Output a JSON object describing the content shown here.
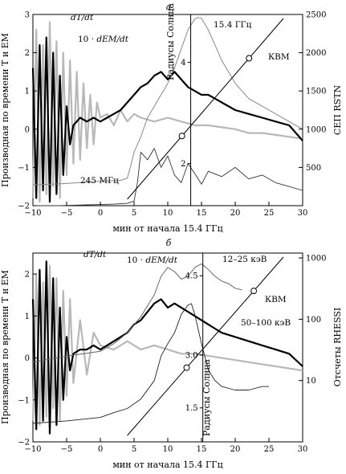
{
  "chart_data": [
    {
      "type": "line",
      "panel_label": "а",
      "xlabel": "мин от начала 15.4 ГГц",
      "ylabel": "Производная по времени T и EM",
      "y2label": "СЕП RSTN",
      "y3label": "Радиусы Солнца",
      "xlim": [
        -10,
        30
      ],
      "ylim": [
        -2,
        3
      ],
      "y2lim": [
        0,
        2500
      ],
      "x_ticks": [
        "−10",
        "−5",
        "0",
        "5",
        "10",
        "15",
        "20",
        "25",
        "30"
      ],
      "y_ticks": [
        "−2",
        "−1",
        "0",
        "1",
        "2",
        "3"
      ],
      "y2_ticks": [
        "500",
        "1000",
        "1500",
        "2000",
        "2500"
      ],
      "y3_ticks": [
        "2",
        "4"
      ],
      "marker_x": 13.4,
      "annotations": [
        "dT/dt",
        "10 · dEM/dt",
        "15.4 ГГц",
        "245 МГц",
        "КВМ"
      ],
      "series": [
        {
          "name": "dT/dt",
          "x": [
            -10,
            -9.5,
            -9,
            -8.5,
            -8,
            -7.5,
            -7,
            -6.5,
            -6,
            -5.5,
            -5,
            -4.5,
            -4,
            -3.5,
            -3,
            -2.5,
            -2,
            -1.5,
            -1,
            -0.5,
            0,
            1,
            2,
            3,
            4,
            5,
            6,
            8,
            10,
            12,
            14,
            16,
            18,
            20,
            22,
            24,
            26,
            28,
            30
          ],
          "y": [
            -1.8,
            2.6,
            -1.9,
            2.2,
            -1.7,
            2.8,
            -1.5,
            2.3,
            -1.8,
            2.0,
            -1.2,
            1.8,
            -0.9,
            1.5,
            -0.8,
            1.2,
            -0.5,
            0.9,
            -0.4,
            0.7,
            0.3,
            0.4,
            0.1,
            0.5,
            0.2,
            0.4,
            0.3,
            0.2,
            0.3,
            0.2,
            0.1,
            0.1,
            0.05,
            0.0,
            -0.1,
            -0.1,
            -0.15,
            -0.2,
            -0.25
          ]
        },
        {
          "name": "10 · dEM/dt",
          "x": [
            -10,
            -9.5,
            -9,
            -8.5,
            -8,
            -7.5,
            -7,
            -6.5,
            -6,
            -5.5,
            -5,
            -4.5,
            -4,
            -3,
            -2,
            -1,
            0,
            1,
            2,
            3,
            4,
            5,
            6,
            7,
            8,
            9,
            10,
            11,
            12,
            13,
            14,
            15,
            16,
            17,
            18,
            20,
            22,
            24,
            26,
            28,
            30
          ],
          "y": [
            1.6,
            -1.8,
            2.2,
            -1.6,
            2.4,
            -1.9,
            2.0,
            -1.7,
            1.4,
            -1.2,
            0.6,
            -0.4,
            0.1,
            0.3,
            0.2,
            0.3,
            0.2,
            0.3,
            0.4,
            0.5,
            0.7,
            0.9,
            1.1,
            1.2,
            1.4,
            1.5,
            1.3,
            1.5,
            1.3,
            1.1,
            1.0,
            0.9,
            0.9,
            0.8,
            0.7,
            0.5,
            0.4,
            0.3,
            0.2,
            0.1,
            -0.3
          ]
        },
        {
          "name": "15.4 ГГц",
          "x": [
            -10,
            -5,
            0,
            3,
            4,
            4.5,
            5,
            6,
            7,
            8,
            9,
            10,
            11,
            12,
            13,
            14,
            14.5,
            15,
            16,
            17,
            18,
            20,
            22,
            24,
            26,
            28,
            30
          ],
          "y": [
            270,
            290,
            320,
            330,
            360,
            520,
            700,
            900,
            1150,
            1300,
            1450,
            1600,
            1800,
            2050,
            2300,
            2440,
            2460,
            2450,
            2300,
            2100,
            1900,
            1600,
            1400,
            1300,
            1200,
            1100,
            1000
          ]
        },
        {
          "name": "245 МГц",
          "x": [
            -10,
            -8,
            -6,
            -4,
            -2,
            0,
            2,
            4,
            5,
            5.5,
            6,
            7,
            8,
            9,
            10,
            11,
            12,
            13,
            14,
            15,
            16,
            18,
            20,
            22,
            24,
            26,
            28,
            30
          ],
          "y": [
            0,
            0,
            0,
            5,
            10,
            15,
            20,
            30,
            60,
            300,
            700,
            600,
            750,
            500,
            650,
            400,
            300,
            550,
            420,
            280,
            450,
            380,
            500,
            350,
            400,
            300,
            250,
            200
          ]
        }
      ],
      "cme": {
        "x": [
          4,
          13.4,
          25
        ],
        "y3": [
          0.9,
          2.4,
          4.3
        ]
      }
    },
    {
      "type": "line",
      "panel_label": "б",
      "xlabel": "мин от начала 15.4 ГГц",
      "ylabel": "Производная по времени T и EM",
      "y2label": "Отсчеты RHESSI",
      "y3label": "Радиусы Солнца",
      "xlim": [
        -10,
        30
      ],
      "ylim": [
        -2,
        2.5
      ],
      "y2_scale": "log",
      "y2lim": [
        1,
        1200
      ],
      "x_ticks": [
        "−10",
        "−5",
        "0",
        "5",
        "10",
        "15",
        "20",
        "25",
        "30"
      ],
      "y_ticks": [
        "−2",
        "−1",
        "0",
        "1",
        "2"
      ],
      "y2_ticks": [
        "10",
        "100",
        "1000"
      ],
      "y3_ticks": [
        "1.5",
        "3.0",
        "4.5"
      ],
      "marker_x": 15.2,
      "annotations": [
        "dT/dt",
        "10 · dEM/dt",
        "12–25 кэВ",
        "50–100 кэВ",
        "КВМ"
      ],
      "series": [
        {
          "name": "dT/dt",
          "x": [
            -10,
            -9.5,
            -9,
            -8.5,
            -8,
            -7.5,
            -7,
            -6.5,
            -6,
            -5.5,
            -5,
            -4.5,
            -4,
            -3,
            -2,
            -1,
            0,
            2,
            4,
            6,
            8,
            10,
            12,
            14,
            16,
            18,
            20,
            22,
            24,
            26,
            28,
            30
          ],
          "y": [
            -1.5,
            2.0,
            -1.6,
            1.8,
            -1.4,
            2.2,
            -1.2,
            1.9,
            -1.5,
            1.6,
            -0.9,
            1.4,
            -0.6,
            0.9,
            -0.4,
            0.6,
            0.3,
            0.2,
            0.4,
            0.2,
            0.3,
            0.2,
            0.1,
            0.1,
            0.05,
            0.0,
            -0.05,
            -0.1,
            -0.15,
            -0.2,
            -0.25,
            -0.3
          ]
        },
        {
          "name": "10 · dEM/dt",
          "x": [
            -10,
            -9.5,
            -9,
            -8.5,
            -8,
            -7.5,
            -7,
            -6.5,
            -6,
            -5.5,
            -5,
            -4.5,
            -4,
            -3,
            -2,
            -1,
            0,
            1,
            2,
            3,
            4,
            5,
            6,
            7,
            8,
            9,
            10,
            11,
            12,
            13,
            14,
            15,
            16,
            17,
            18,
            20,
            22,
            24,
            26,
            28,
            30
          ],
          "y": [
            1.4,
            -1.7,
            2.1,
            -1.5,
            2.3,
            -1.8,
            1.9,
            -1.6,
            1.2,
            -1.0,
            0.5,
            -0.3,
            0.1,
            0.2,
            0.2,
            0.3,
            0.2,
            0.3,
            0.4,
            0.5,
            0.6,
            0.8,
            0.9,
            1.1,
            1.3,
            1.4,
            1.2,
            1.3,
            1.2,
            1.1,
            1.0,
            0.9,
            0.8,
            0.7,
            0.6,
            0.5,
            0.4,
            0.3,
            0.2,
            0.1,
            -0.2
          ]
        },
        {
          "name": "12–25 кэВ",
          "x": [
            -10,
            -5,
            0,
            2,
            4,
            6,
            8,
            9,
            10,
            11,
            12,
            13,
            14,
            15,
            16,
            17,
            18,
            19,
            20,
            21
          ],
          "y": [
            20,
            25,
            30,
            40,
            60,
            110,
            250,
            500,
            700,
            600,
            450,
            500,
            700,
            800,
            650,
            500,
            420,
            380,
            320,
            300
          ]
        },
        {
          "name": "50–100 кэВ",
          "x": [
            -10,
            -5,
            0,
            2,
            4,
            6,
            8,
            9,
            10,
            11,
            12,
            13,
            13.5,
            14,
            15,
            16,
            17,
            18,
            20,
            22,
            24,
            25
          ],
          "y": [
            2,
            2.2,
            2.5,
            3,
            3.5,
            5,
            10,
            25,
            40,
            60,
            120,
            170,
            180,
            120,
            40,
            15,
            10,
            8,
            7,
            7,
            8,
            8
          ]
        }
      ],
      "cme": {
        "x": [
          4,
          13.4,
          25
        ],
        "y3": [
          0.5,
          2.5,
          4.4
        ]
      }
    }
  ]
}
